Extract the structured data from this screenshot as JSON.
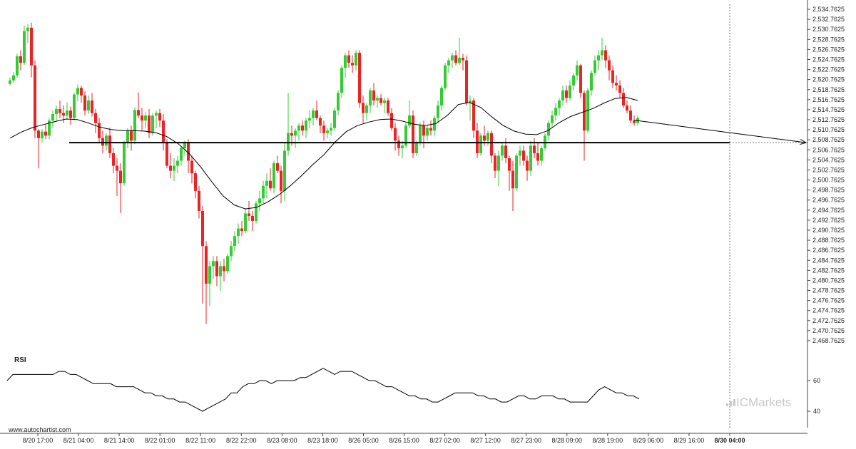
{
  "chart_data": {
    "type": "candlestick",
    "y_range": [
      2467.7625,
      2535.7625
    ],
    "y_ticks": [
      "2,534.7625",
      "2,532.7625",
      "2,530.7625",
      "2,528.7625",
      "2,526.7625",
      "2,524.7625",
      "2,522.7625",
      "2,520.7625",
      "2,518.7625",
      "2,516.7625",
      "2,514.7625",
      "2,512.7625",
      "2,510.7625",
      "2,508.7625",
      "2,506.7625",
      "2,504.7625",
      "2,502.7625",
      "2,500.7625",
      "2,498.7625",
      "2,496.7625",
      "2,494.7625",
      "2,492.7625",
      "2,490.7625",
      "2,488.7625",
      "2,486.7625",
      "2,484.7625",
      "2,482.7625",
      "2,480.7625",
      "2,478.7625",
      "2,476.7625",
      "2,474.7625",
      "2,472.7625",
      "2,470.7625",
      "2,468.7625"
    ],
    "x_ticks": [
      "8/20 17:00",
      "8/21 04:00",
      "8/21 14:00",
      "8/22 01:00",
      "8/22 11:00",
      "8/22 22:00",
      "8/23 08:00",
      "8/23 18:00",
      "8/26 05:00",
      "8/26 15:00",
      "8/27 02:00",
      "8/27 12:00",
      "8/27 23:00",
      "8/28 09:00",
      "8/28 19:00",
      "8/29 06:00",
      "8/29 16:00",
      "8/30 04:00"
    ],
    "candles": [
      [
        2519.9,
        2521.2,
        2519.6,
        2520.6
      ],
      [
        2520.6,
        2522.3,
        2520.2,
        2521.6
      ],
      [
        2521.6,
        2525.9,
        2521.1,
        2525.4
      ],
      [
        2525.4,
        2526.6,
        2522.6,
        2524.1
      ],
      [
        2524.1,
        2531.5,
        2523.7,
        2530.4
      ],
      [
        2530.4,
        2531.8,
        2528.1,
        2531.1
      ],
      [
        2531.1,
        2532.1,
        2521.2,
        2523.6
      ],
      [
        2523.6,
        2524.6,
        2509.1,
        2510.6
      ],
      [
        2510.6,
        2510.9,
        2503.1,
        2509.1
      ],
      [
        2509.1,
        2510.9,
        2508.2,
        2510.4
      ],
      [
        2510.4,
        2511.8,
        2508.9,
        2509.6
      ],
      [
        2509.6,
        2513.1,
        2508.9,
        2512.6
      ],
      [
        2512.6,
        2514.6,
        2511.1,
        2513.9
      ],
      [
        2513.9,
        2515.6,
        2512.6,
        2514.9
      ],
      [
        2514.9,
        2516.6,
        2513.1,
        2514.1
      ],
      [
        2514.1,
        2515.6,
        2512.1,
        2513.6
      ],
      [
        2513.6,
        2516.2,
        2512.8,
        2514.6
      ],
      [
        2514.6,
        2515.4,
        2511.8,
        2513.1
      ],
      [
        2513.1,
        2518.1,
        2512.6,
        2517.8
      ],
      [
        2517.8,
        2519.8,
        2516.4,
        2519.1
      ],
      [
        2519.1,
        2519.6,
        2516.1,
        2517.6
      ],
      [
        2517.6,
        2518.4,
        2513.6,
        2514.6
      ],
      [
        2514.6,
        2517.6,
        2513.9,
        2516.6
      ],
      [
        2516.6,
        2518.1,
        2513.4,
        2514.1
      ],
      [
        2514.1,
        2514.9,
        2510.1,
        2512.1
      ],
      [
        2512.1,
        2513.1,
        2508.1,
        2509.1
      ],
      [
        2509.1,
        2510.6,
        2506.1,
        2507.6
      ],
      [
        2507.6,
        2510.1,
        2506.6,
        2509.6
      ],
      [
        2509.6,
        2511.2,
        2505.1,
        2506.1
      ],
      [
        2506.1,
        2507.1,
        2502.1,
        2503.6
      ],
      [
        2503.6,
        2505.1,
        2497.6,
        2502.6
      ],
      [
        2502.6,
        2504.1,
        2494.2,
        2500.1
      ],
      [
        2500.1,
        2508.6,
        2499.6,
        2508.1
      ],
      [
        2508.1,
        2511.1,
        2507.1,
        2510.6
      ],
      [
        2510.6,
        2511.6,
        2506.6,
        2508.6
      ],
      [
        2508.6,
        2515.2,
        2507.9,
        2514.7
      ],
      [
        2514.7,
        2518.2,
        2513.1,
        2513.6
      ],
      [
        2513.6,
        2515.1,
        2510.6,
        2512.6
      ],
      [
        2512.6,
        2514.3,
        2511.1,
        2513.6
      ],
      [
        2513.6,
        2514.9,
        2509.1,
        2510.1
      ],
      [
        2510.1,
        2514.1,
        2509.6,
        2513.6
      ],
      [
        2513.6,
        2514.6,
        2511.1,
        2514.1
      ],
      [
        2514.1,
        2514.9,
        2511.3,
        2512.6
      ],
      [
        2512.6,
        2513.9,
        2506.6,
        2508.1
      ],
      [
        2508.1,
        2508.9,
        2503.1,
        2503.6
      ],
      [
        2503.6,
        2506.1,
        2501.1,
        2502.6
      ],
      [
        2502.6,
        2505.1,
        2500.6,
        2503.6
      ],
      [
        2503.6,
        2505.6,
        2502.1,
        2504.6
      ],
      [
        2504.6,
        2507.6,
        2503.6,
        2507.1
      ],
      [
        2507.1,
        2508.6,
        2505.6,
        2508.1
      ],
      [
        2508.1,
        2508.9,
        2502.1,
        2504.6
      ],
      [
        2504.6,
        2505.6,
        2500.1,
        2502.1
      ],
      [
        2502.1,
        2502.6,
        2497.1,
        2498.6
      ],
      [
        2498.6,
        2499.6,
        2493.1,
        2494.6
      ],
      [
        2494.6,
        2495.6,
        2476.1,
        2487.6
      ],
      [
        2487.6,
        2488.6,
        2472.1,
        2480.1
      ],
      [
        2480.1,
        2484.6,
        2475.6,
        2483.6
      ],
      [
        2483.6,
        2485.6,
        2481.1,
        2484.6
      ],
      [
        2484.6,
        2485.6,
        2479.6,
        2481.6
      ],
      [
        2481.6,
        2484.6,
        2478.6,
        2483.6
      ],
      [
        2483.6,
        2485.1,
        2480.6,
        2482.6
      ],
      [
        2482.6,
        2486.1,
        2482.1,
        2485.6
      ],
      [
        2485.6,
        2488.6,
        2484.6,
        2487.6
      ],
      [
        2487.6,
        2490.6,
        2486.6,
        2489.6
      ],
      [
        2489.6,
        2492.1,
        2488.1,
        2491.1
      ],
      [
        2491.1,
        2492.6,
        2489.6,
        2490.6
      ],
      [
        2490.6,
        2495.1,
        2490.1,
        2494.1
      ],
      [
        2494.1,
        2496.6,
        2492.6,
        2493.6
      ],
      [
        2493.6,
        2494.6,
        2490.6,
        2492.6
      ],
      [
        2492.6,
        2496.6,
        2492.1,
        2496.1
      ],
      [
        2496.1,
        2498.6,
        2494.6,
        2497.1
      ],
      [
        2497.1,
        2500.6,
        2496.1,
        2499.6
      ],
      [
        2499.6,
        2502.1,
        2497.1,
        2500.6
      ],
      [
        2500.6,
        2503.1,
        2498.6,
        2499.1
      ],
      [
        2499.1,
        2504.6,
        2498.1,
        2504.1
      ],
      [
        2504.1,
        2505.6,
        2502.1,
        2502.6
      ],
      [
        2502.6,
        2503.6,
        2496.1,
        2498.6
      ],
      [
        2498.6,
        2508.1,
        2496.6,
        2506.6
      ],
      [
        2506.6,
        2518.1,
        2505.6,
        2510.1
      ],
      [
        2510.1,
        2511.6,
        2507.6,
        2509.6
      ],
      [
        2509.6,
        2511.1,
        2507.1,
        2510.6
      ],
      [
        2510.6,
        2512.1,
        2508.6,
        2511.6
      ],
      [
        2511.6,
        2512.6,
        2509.6,
        2510.6
      ],
      [
        2510.6,
        2513.1,
        2509.1,
        2512.6
      ],
      [
        2512.6,
        2514.6,
        2511.1,
        2513.1
      ],
      [
        2513.1,
        2515.1,
        2511.6,
        2514.6
      ],
      [
        2514.6,
        2516.6,
        2512.6,
        2513.1
      ],
      [
        2513.1,
        2513.6,
        2510.1,
        2511.6
      ],
      [
        2511.6,
        2512.6,
        2508.6,
        2510.1
      ],
      [
        2510.1,
        2511.1,
        2509.1,
        2510.6
      ],
      [
        2510.6,
        2512.1,
        2509.6,
        2511.1
      ],
      [
        2511.1,
        2515.1,
        2510.6,
        2514.6
      ],
      [
        2514.6,
        2518.6,
        2513.6,
        2518.1
      ],
      [
        2518.1,
        2523.6,
        2517.1,
        2523.1
      ],
      [
        2523.1,
        2526.1,
        2521.1,
        2525.6
      ],
      [
        2525.6,
        2526.6,
        2523.1,
        2524.1
      ],
      [
        2524.1,
        2525.6,
        2522.1,
        2523.6
      ],
      [
        2523.6,
        2526.6,
        2522.6,
        2526.1
      ],
      [
        2526.1,
        2526.6,
        2515.1,
        2516.1
      ],
      [
        2516.1,
        2517.6,
        2512.1,
        2514.1
      ],
      [
        2514.1,
        2516.1,
        2512.6,
        2515.6
      ],
      [
        2515.6,
        2519.1,
        2514.1,
        2518.6
      ],
      [
        2518.6,
        2520.1,
        2515.6,
        2516.6
      ],
      [
        2516.6,
        2517.6,
        2515.1,
        2517.1
      ],
      [
        2517.1,
        2517.9,
        2515.6,
        2516.1
      ],
      [
        2516.1,
        2517.1,
        2514.1,
        2516.6
      ],
      [
        2516.6,
        2517.1,
        2513.6,
        2514.1
      ],
      [
        2514.1,
        2515.1,
        2510.6,
        2511.1
      ],
      [
        2511.1,
        2512.1,
        2506.6,
        2508.6
      ],
      [
        2508.6,
        2509.6,
        2505.6,
        2507.1
      ],
      [
        2507.1,
        2508.6,
        2505.1,
        2507.6
      ],
      [
        2507.6,
        2512.1,
        2507.1,
        2511.6
      ],
      [
        2511.6,
        2516.6,
        2511.1,
        2513.6
      ],
      [
        2513.6,
        2514.6,
        2505.1,
        2506.1
      ],
      [
        2506.1,
        2508.6,
        2505.6,
        2508.1
      ],
      [
        2508.1,
        2512.1,
        2507.6,
        2511.6
      ],
      [
        2511.6,
        2512.6,
        2507.1,
        2509.6
      ],
      [
        2509.6,
        2511.6,
        2508.6,
        2511.1
      ],
      [
        2511.1,
        2512.6,
        2509.6,
        2510.6
      ],
      [
        2510.6,
        2513.6,
        2509.6,
        2513.1
      ],
      [
        2513.1,
        2516.6,
        2512.1,
        2515.6
      ],
      [
        2515.6,
        2519.6,
        2514.6,
        2519.1
      ],
      [
        2519.1,
        2524.1,
        2518.6,
        2523.6
      ],
      [
        2523.6,
        2525.1,
        2522.1,
        2524.6
      ],
      [
        2524.6,
        2526.1,
        2523.1,
        2525.6
      ],
      [
        2525.6,
        2526.6,
        2523.6,
        2524.1
      ],
      [
        2524.1,
        2529.1,
        2523.6,
        2525.1
      ],
      [
        2525.1,
        2525.9,
        2522.6,
        2524.6
      ],
      [
        2524.6,
        2525.6,
        2515.6,
        2516.1
      ],
      [
        2516.1,
        2517.6,
        2512.6,
        2516.6
      ],
      [
        2516.6,
        2517.1,
        2509.1,
        2510.6
      ],
      [
        2510.6,
        2512.1,
        2505.1,
        2506.1
      ],
      [
        2506.1,
        2510.1,
        2505.6,
        2509.6
      ],
      [
        2509.6,
        2511.6,
        2507.6,
        2508.6
      ],
      [
        2508.6,
        2510.6,
        2507.6,
        2510.1
      ],
      [
        2510.1,
        2510.6,
        2504.1,
        2505.6
      ],
      [
        2505.6,
        2506.1,
        2501.1,
        2502.6
      ],
      [
        2502.6,
        2506.6,
        2499.6,
        2505.6
      ],
      [
        2505.6,
        2508.1,
        2504.6,
        2507.6
      ],
      [
        2507.6,
        2509.1,
        2504.1,
        2505.1
      ],
      [
        2505.1,
        2505.6,
        2498.6,
        2502.6
      ],
      [
        2502.6,
        2504.6,
        2494.6,
        2499.1
      ],
      [
        2499.1,
        2506.1,
        2498.6,
        2505.6
      ],
      [
        2505.6,
        2507.6,
        2503.6,
        2506.6
      ],
      [
        2506.6,
        2507.6,
        2503.6,
        2504.6
      ],
      [
        2504.6,
        2505.6,
        2500.6,
        2502.6
      ],
      [
        2502.6,
        2508.6,
        2501.6,
        2507.6
      ],
      [
        2507.6,
        2509.1,
        2505.1,
        2506.1
      ],
      [
        2506.1,
        2508.1,
        2503.6,
        2504.6
      ],
      [
        2504.6,
        2507.6,
        2503.6,
        2507.1
      ],
      [
        2507.1,
        2510.1,
        2506.6,
        2509.6
      ],
      [
        2509.6,
        2512.6,
        2508.6,
        2512.1
      ],
      [
        2512.1,
        2514.6,
        2511.1,
        2513.6
      ],
      [
        2513.6,
        2516.1,
        2512.6,
        2515.1
      ],
      [
        2515.1,
        2517.1,
        2513.6,
        2516.6
      ],
      [
        2516.6,
        2519.6,
        2515.6,
        2518.6
      ],
      [
        2518.6,
        2519.6,
        2516.1,
        2517.1
      ],
      [
        2517.1,
        2520.6,
        2516.6,
        2519.6
      ],
      [
        2519.6,
        2522.1,
        2518.6,
        2521.6
      ],
      [
        2521.6,
        2524.6,
        2520.6,
        2523.6
      ],
      [
        2523.6,
        2523.9,
        2517.1,
        2518.1
      ],
      [
        2518.1,
        2518.6,
        2504.6,
        2510.6
      ],
      [
        2510.6,
        2519.1,
        2510.1,
        2518.6
      ],
      [
        2518.6,
        2522.6,
        2517.6,
        2522.1
      ],
      [
        2522.1,
        2525.6,
        2521.6,
        2524.6
      ],
      [
        2524.6,
        2526.6,
        2522.6,
        2525.6
      ],
      [
        2525.6,
        2529.1,
        2524.6,
        2526.6
      ],
      [
        2526.6,
        2527.6,
        2523.1,
        2524.6
      ],
      [
        2524.6,
        2525.6,
        2520.6,
        2522.6
      ],
      [
        2522.6,
        2523.6,
        2519.1,
        2520.1
      ],
      [
        2520.1,
        2521.6,
        2518.6,
        2519.6
      ],
      [
        2519.6,
        2520.6,
        2517.1,
        2518.1
      ],
      [
        2518.1,
        2519.1,
        2515.1,
        2515.6
      ],
      [
        2515.6,
        2516.6,
        2514.1,
        2514.6
      ],
      [
        2514.6,
        2515.6,
        2512.1,
        2512.6
      ],
      [
        2512.6,
        2513.6,
        2511.6,
        2512.1
      ],
      [
        2512.1,
        2513.6,
        2511.6,
        2513.1
      ]
    ],
    "moving_average": [
      2509.1,
      2510.3,
      2511.2,
      2511.8,
      2512.4,
      2512.9,
      2512.8,
      2512.1,
      2511.3,
      2510.8,
      2510.6,
      2510.6,
      2510.5,
      2510.2,
      2509.4,
      2508.0,
      2506.0,
      2503.4,
      2500.4,
      2497.6,
      2495.8,
      2495.0,
      2495.3,
      2496.4,
      2497.8,
      2499.6,
      2501.6,
      2503.8,
      2505.8,
      2508.3,
      2510.4,
      2511.6,
      2512.3,
      2512.8,
      2512.9,
      2512.5,
      2511.9,
      2511.6,
      2512.0,
      2513.6,
      2515.8,
      2516.2,
      2515.2,
      2513.3,
      2511.6,
      2510.5,
      2509.9,
      2509.8,
      2510.6,
      2512.2,
      2513.4,
      2514.2,
      2515.0,
      2516.1,
      2517.0,
      2517.2,
      2516.6
    ],
    "support_level": 2508.2,
    "projection_end": 2508.2,
    "rsi": {
      "title": "RSI",
      "ticks": [
        "60",
        "40"
      ],
      "values": [
        60,
        64,
        64,
        64,
        64,
        64,
        64,
        64,
        64,
        66,
        66,
        64,
        64,
        62,
        60,
        58,
        58,
        58,
        58,
        56,
        56,
        56,
        56,
        54,
        52,
        52,
        50,
        50,
        48,
        48,
        46,
        46,
        44,
        42,
        40,
        42,
        44,
        46,
        48,
        52,
        52,
        56,
        58,
        58,
        60,
        60,
        58,
        60,
        60,
        60,
        60,
        62,
        62,
        64,
        66,
        68,
        66,
        64,
        66,
        66,
        66,
        64,
        62,
        60,
        60,
        58,
        56,
        56,
        54,
        52,
        50,
        50,
        48,
        48,
        46,
        46,
        48,
        50,
        52,
        52,
        52,
        52,
        50,
        50,
        48,
        48,
        46,
        46,
        48,
        50,
        50,
        48,
        48,
        50,
        50,
        50,
        48,
        48,
        46,
        46,
        46,
        46,
        50,
        54,
        56,
        54,
        52,
        52,
        50,
        50,
        48
      ]
    }
  },
  "watermark": "www.autochartist.com",
  "brand": "ICMarkets",
  "colors": {
    "up": "#33cc33",
    "down": "#ee2222",
    "line": "#000000",
    "grid_dash": "#777777"
  }
}
